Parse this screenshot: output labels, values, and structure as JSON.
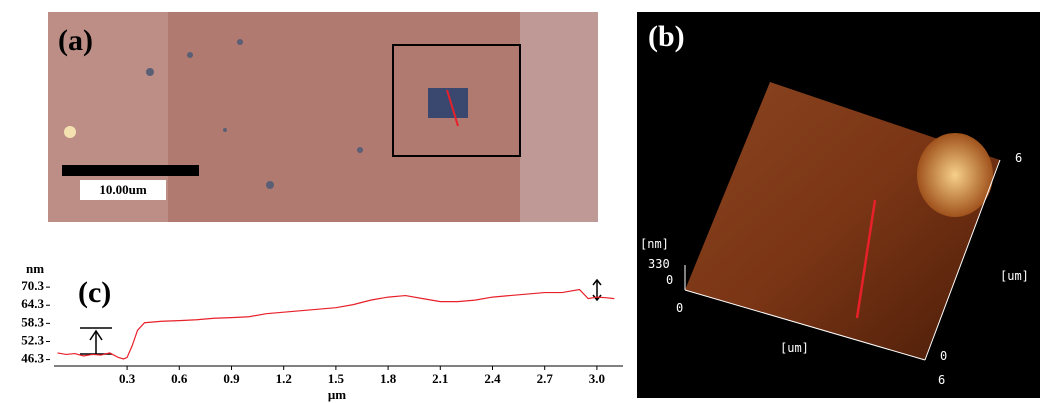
{
  "panel_a": {
    "label": "(a)",
    "scale_bar": "10.00um"
  },
  "panel_b": {
    "label": "(b)",
    "z_unit": "[nm]",
    "z_max": "330",
    "z_min": "0",
    "x_unit": "[um]",
    "x_max": "6",
    "x_min": "0",
    "y_unit": "[um]",
    "y_max": "6",
    "y_min": "0"
  },
  "chart_data": {
    "type": "line",
    "title": "(c)",
    "x_label": "μm",
    "y_label": "nm",
    "color": "#e8202a",
    "x": [
      -0.1,
      -0.05,
      0,
      0.05,
      0.1,
      0.15,
      0.2,
      0.25,
      0.28,
      0.3,
      0.33,
      0.36,
      0.4,
      0.5,
      0.6,
      0.7,
      0.8,
      0.9,
      1.0,
      1.1,
      1.2,
      1.3,
      1.4,
      1.5,
      1.6,
      1.7,
      1.8,
      1.9,
      2.0,
      2.1,
      2.2,
      2.3,
      2.4,
      2.5,
      2.6,
      2.7,
      2.8,
      2.9,
      2.95,
      3.0,
      3.05,
      3.1
    ],
    "values": [
      48.5,
      48,
      48.3,
      47.5,
      48,
      47.8,
      48.5,
      47,
      46.5,
      47,
      51,
      56,
      58.5,
      59,
      59.2,
      59.5,
      60,
      60.2,
      60.5,
      61.5,
      62,
      62.5,
      63,
      63.5,
      64.5,
      66,
      67,
      67.5,
      66.5,
      65.5,
      65.5,
      66,
      67,
      67.5,
      68,
      68.5,
      68.5,
      69.5,
      66.5,
      67,
      66.8,
      66.5
    ],
    "xlim": [
      -0.12,
      3.15
    ],
    "ylim": [
      45.5,
      72
    ],
    "xticks": [
      0.3,
      0.6,
      0.9,
      1.2,
      1.5,
      1.8,
      2.1,
      2.4,
      2.7,
      {
        "value": 3,
        "label": "3.0"
      }
    ],
    "yticks": [
      46.3,
      52.3,
      58.3,
      64.3,
      70.3
    ]
  }
}
